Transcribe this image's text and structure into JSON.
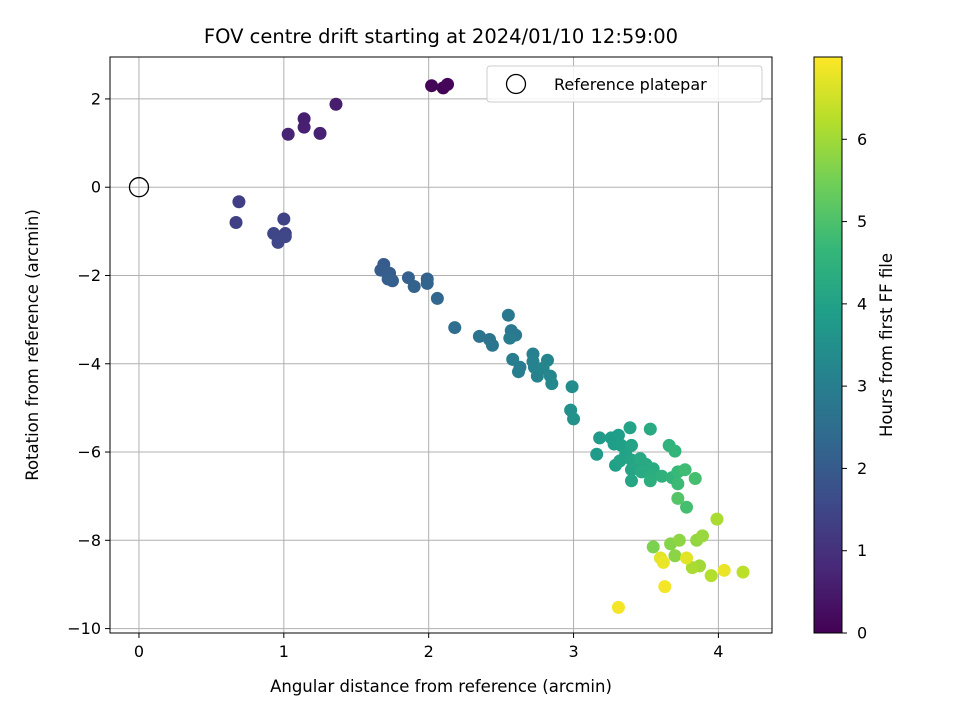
{
  "chart_data": {
    "type": "scatter",
    "title": "FOV centre drift starting at 2024/01/10 12:59:00",
    "xlabel": "Angular distance from reference (arcmin)",
    "ylabel": "Rotation from reference (arcmin)",
    "xlim": [
      -0.2,
      4.37
    ],
    "ylim": [
      -10.1,
      2.95
    ],
    "xticks": [
      0,
      1,
      2,
      3,
      4
    ],
    "yticks": [
      2,
      0,
      -2,
      -4,
      -6,
      -8,
      -10
    ],
    "grid": true,
    "legend": {
      "placement": "top-right",
      "entries": [
        "Reference platepar"
      ]
    },
    "reference_point": {
      "name": "Reference platepar",
      "x": 0,
      "y": 0,
      "marker": "open-circle"
    },
    "colorbar": {
      "label": "Hours from first FF file",
      "colormap": "viridis",
      "range": [
        0,
        7
      ],
      "ticks": [
        0,
        1,
        2,
        3,
        4,
        5,
        6
      ]
    },
    "series": [
      {
        "points": [
          [
            2.1,
            2.25,
            0.05
          ],
          [
            2.02,
            2.3,
            0.08
          ],
          [
            2.13,
            2.33,
            0.1
          ],
          [
            1.36,
            1.88,
            0.55
          ],
          [
            1.14,
            1.55,
            0.6
          ],
          [
            1.14,
            1.36,
            0.62
          ],
          [
            1.25,
            1.22,
            0.65
          ],
          [
            1.03,
            1.2,
            0.7
          ],
          [
            0.69,
            -0.33,
            1.3
          ],
          [
            0.67,
            -0.8,
            1.35
          ],
          [
            1.0,
            -0.72,
            1.4
          ],
          [
            1.01,
            -1.05,
            1.4
          ],
          [
            0.93,
            -1.05,
            1.45
          ],
          [
            0.96,
            -1.25,
            1.5
          ],
          [
            1.01,
            -1.12,
            1.5
          ],
          [
            1.69,
            -1.75,
            2.0
          ],
          [
            1.67,
            -1.88,
            2.05
          ],
          [
            1.73,
            -1.95,
            2.05
          ],
          [
            1.72,
            -2.08,
            2.1
          ],
          [
            1.75,
            -2.12,
            2.1
          ],
          [
            1.86,
            -2.05,
            2.15
          ],
          [
            1.9,
            -2.25,
            2.2
          ],
          [
            1.99,
            -2.08,
            2.2
          ],
          [
            1.99,
            -2.18,
            2.25
          ],
          [
            2.06,
            -2.52,
            2.3
          ],
          [
            2.18,
            -3.18,
            2.5
          ],
          [
            2.35,
            -3.38,
            2.7
          ],
          [
            2.42,
            -3.45,
            2.7
          ],
          [
            2.44,
            -3.58,
            2.75
          ],
          [
            2.55,
            -2.9,
            2.8
          ],
          [
            2.57,
            -3.25,
            2.85
          ],
          [
            2.6,
            -3.35,
            2.85
          ],
          [
            2.56,
            -3.42,
            2.9
          ],
          [
            2.58,
            -3.9,
            2.95
          ],
          [
            2.63,
            -4.08,
            3.0
          ],
          [
            2.62,
            -4.18,
            3.0
          ],
          [
            2.72,
            -3.78,
            3.05
          ],
          [
            2.72,
            -3.95,
            3.1
          ],
          [
            2.73,
            -4.08,
            3.1
          ],
          [
            2.75,
            -4.28,
            3.15
          ],
          [
            2.79,
            -4.1,
            3.2
          ],
          [
            2.82,
            -3.92,
            3.2
          ],
          [
            2.84,
            -4.28,
            3.25
          ],
          [
            2.85,
            -4.45,
            3.3
          ],
          [
            2.99,
            -4.52,
            3.4
          ],
          [
            2.98,
            -5.05,
            3.5
          ],
          [
            3.0,
            -5.25,
            3.55
          ],
          [
            3.16,
            -6.05,
            3.8
          ],
          [
            3.18,
            -5.68,
            3.8
          ],
          [
            3.26,
            -5.68,
            3.85
          ],
          [
            3.28,
            -5.82,
            3.9
          ],
          [
            3.31,
            -5.62,
            3.9
          ],
          [
            3.33,
            -5.85,
            3.95
          ],
          [
            3.29,
            -6.3,
            3.95
          ],
          [
            3.32,
            -6.2,
            4.0
          ],
          [
            3.36,
            -6.05,
            4.0
          ],
          [
            3.39,
            -5.45,
            4.05
          ],
          [
            3.4,
            -5.85,
            4.05
          ],
          [
            3.4,
            -6.18,
            4.1
          ],
          [
            3.4,
            -6.4,
            4.1
          ],
          [
            3.4,
            -6.65,
            4.15
          ],
          [
            3.44,
            -6.35,
            4.15
          ],
          [
            3.46,
            -6.15,
            4.2
          ],
          [
            3.5,
            -6.28,
            4.2
          ],
          [
            3.47,
            -6.45,
            4.25
          ],
          [
            3.53,
            -5.48,
            4.25
          ],
          [
            3.55,
            -6.38,
            4.3
          ],
          [
            3.54,
            -6.55,
            4.35
          ],
          [
            3.53,
            -6.65,
            4.4
          ],
          [
            3.61,
            -6.55,
            4.45
          ],
          [
            3.66,
            -5.85,
            4.5
          ],
          [
            3.68,
            -6.58,
            4.55
          ],
          [
            3.7,
            -5.98,
            4.6
          ],
          [
            3.72,
            -6.45,
            4.7
          ],
          [
            3.72,
            -6.72,
            4.75
          ],
          [
            3.77,
            -6.4,
            4.8
          ],
          [
            3.78,
            -7.25,
            4.9
          ],
          [
            3.72,
            -7.05,
            5.1
          ],
          [
            3.84,
            -6.6,
            4.9
          ],
          [
            3.55,
            -8.15,
            5.6
          ],
          [
            3.67,
            -8.08,
            5.7
          ],
          [
            3.7,
            -8.35,
            5.75
          ],
          [
            3.73,
            -8.0,
            5.8
          ],
          [
            3.85,
            -8.0,
            5.85
          ],
          [
            3.89,
            -7.9,
            5.9
          ],
          [
            3.87,
            -8.58,
            6.0
          ],
          [
            3.82,
            -8.62,
            6.1
          ],
          [
            3.95,
            -8.8,
            6.2
          ],
          [
            3.99,
            -7.52,
            6.1
          ],
          [
            4.17,
            -8.72,
            6.3
          ],
          [
            3.6,
            -8.4,
            6.7
          ],
          [
            3.62,
            -8.5,
            6.8
          ],
          [
            3.78,
            -8.4,
            6.7
          ],
          [
            4.04,
            -8.68,
            6.8
          ],
          [
            3.63,
            -9.05,
            6.9
          ],
          [
            3.31,
            -9.52,
            6.9
          ]
        ]
      }
    ]
  },
  "colors": {
    "grid": "#b0b0b0",
    "axes": "#000000",
    "background": "#ffffff",
    "viridis_stops": [
      "#440154",
      "#482878",
      "#3e4989",
      "#31688e",
      "#26828e",
      "#1f9e89",
      "#35b779",
      "#6ece58",
      "#b5de2b",
      "#fde725"
    ]
  }
}
